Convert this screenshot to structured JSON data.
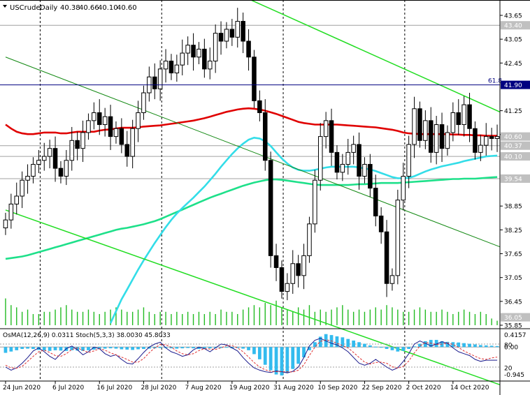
{
  "chart_data": [
    {
      "type": "candlestick",
      "symbol": "USCrude",
      "timeframe": "Daily",
      "ohlc_readout": [
        "40.38",
        "40.66",
        "40.10",
        "40.60"
      ],
      "ylim": [
        35.85,
        43.65
      ],
      "y_ticks": [
        {
          "value": 43.65,
          "label": "43.65"
        },
        {
          "value": 43.05,
          "label": "43.05"
        },
        {
          "value": 42.45,
          "label": "42.45"
        },
        {
          "value": 41.25,
          "label": "41.25"
        },
        {
          "value": 40.65,
          "label": "40.65"
        },
        {
          "value": 38.85,
          "label": "38.85"
        },
        {
          "value": 38.25,
          "label": "38.25"
        },
        {
          "value": 37.65,
          "label": "37.65"
        },
        {
          "value": 37.05,
          "label": "37.05"
        },
        {
          "value": 36.45,
          "label": "36.45"
        },
        {
          "value": 35.85,
          "label": "35.85"
        }
      ],
      "price_markers": [
        {
          "value": 43.4,
          "label": "43.40",
          "bg": "#c0c0c0",
          "fg": "#ffffff"
        },
        {
          "value": 41.9,
          "label": "41.90",
          "bg": "#000080",
          "fg": "#ffffff"
        },
        {
          "value": 40.6,
          "label": "40.60",
          "bg": "#c0c0c0",
          "fg": "#ffffff"
        },
        {
          "value": 40.37,
          "label": "40.37",
          "bg": "#c0c0c0",
          "fg": "#ffffff"
        },
        {
          "value": 40.1,
          "label": "40.10",
          "bg": "#c0c0c0",
          "fg": "#ffffff"
        },
        {
          "value": 39.54,
          "label": "39.54",
          "bg": "#c0c0c0",
          "fg": "#ffffff"
        },
        {
          "value": 36.05,
          "label": "36.05",
          "bg": "#c0c0c0",
          "fg": "#ffffff"
        }
      ],
      "fib_label": "61.8",
      "fib_level": 41.9,
      "upper_level": 43.4,
      "bar_count": 90,
      "x_labels": [
        {
          "bar": 0,
          "label": "24 Jun 2020"
        },
        {
          "bar": 9,
          "label": "6 Jul 2020"
        },
        {
          "bar": 17,
          "label": "16 Jul 2020"
        },
        {
          "bar": 25,
          "label": "28 Jul 2020"
        },
        {
          "bar": 33,
          "label": "7 Aug 2020"
        },
        {
          "bar": 41,
          "label": "19 Aug 2020"
        },
        {
          "bar": 49,
          "label": "31 Aug 2020"
        },
        {
          "bar": 57,
          "label": "10 Sep 2020"
        },
        {
          "bar": 65,
          "label": "22 Sep 2020"
        },
        {
          "bar": 73,
          "label": "2 Oct 2020"
        },
        {
          "bar": 81,
          "label": "14 Oct 2020"
        }
      ],
      "separators": [
        5,
        27,
        49,
        71
      ],
      "closes": [
        38.5,
        38.9,
        39.1,
        39.5,
        39.6,
        39.9,
        40.0,
        40.1,
        40.3,
        39.8,
        39.6,
        40.0,
        40.5,
        40.3,
        40.7,
        41.0,
        41.2,
        40.9,
        41.1,
        40.6,
        40.8,
        40.4,
        40.1,
        40.8,
        41.2,
        41.7,
        42.1,
        41.8,
        42.3,
        42.5,
        42.2,
        42.4,
        42.7,
        42.9,
        42.6,
        42.8,
        42.3,
        42.5,
        43.2,
        43.0,
        43.3,
        43.1,
        43.5,
        43.0,
        42.6,
        41.5,
        41.2,
        40.0,
        37.6,
        37.3,
        36.7,
        36.9,
        37.4,
        37.1,
        37.6,
        38.4,
        39.5,
        40.6,
        41.0,
        40.2,
        39.7,
        39.9,
        40.2,
        40.4,
        39.6,
        39.9,
        39.3,
        38.6,
        38.2,
        36.9,
        37.1,
        39.0,
        39.6,
        40.4,
        41.3,
        40.5,
        41.0,
        40.2,
        40.9,
        40.3,
        40.7,
        41.2,
        40.9,
        41.4,
        40.8,
        40.2,
        40.38,
        40.6,
        40.55,
        40.6
      ],
      "ma_slow": {
        "name": "MA200",
        "color": "#e00000",
        "values": [
          40.9,
          40.8,
          40.72,
          40.68,
          40.66,
          40.66,
          40.68,
          40.7,
          40.7,
          40.7,
          40.68,
          40.68,
          40.7,
          40.72,
          40.72,
          40.72,
          40.72,
          40.75,
          40.77,
          40.78,
          40.8,
          40.82,
          40.82,
          40.82,
          40.83,
          40.85,
          40.86,
          40.87,
          40.88,
          40.9,
          40.92,
          40.94,
          40.96,
          40.98,
          41.0,
          41.03,
          41.06,
          41.1,
          41.14,
          41.18,
          41.22,
          41.25,
          41.28,
          41.3,
          41.31,
          41.3,
          41.28,
          41.25,
          41.21,
          41.17,
          41.12,
          41.07,
          41.02,
          40.97,
          40.94,
          40.92,
          40.9,
          40.9,
          40.9,
          40.9,
          40.9,
          40.89,
          40.88,
          40.87,
          40.86,
          40.85,
          40.84,
          40.83,
          40.81,
          40.79,
          40.77,
          40.74,
          40.7,
          40.68,
          40.67,
          40.66,
          40.66,
          40.66,
          40.66,
          40.66,
          40.66,
          40.65,
          40.65,
          40.64,
          40.64,
          40.63,
          40.63,
          40.62,
          40.62,
          40.62
        ]
      },
      "ma_fast": {
        "name": "MA50",
        "color": "#33dde8",
        "values": [
          null,
          null,
          null,
          null,
          null,
          null,
          null,
          null,
          null,
          null,
          null,
          null,
          null,
          null,
          null,
          null,
          null,
          null,
          null,
          35.9,
          36.2,
          36.5,
          36.75,
          37.0,
          37.25,
          37.48,
          37.7,
          37.92,
          38.12,
          38.32,
          38.5,
          38.66,
          38.8,
          38.93,
          39.06,
          39.2,
          39.34,
          39.5,
          39.66,
          39.84,
          40.0,
          40.16,
          40.3,
          40.42,
          40.52,
          40.57,
          40.55,
          40.48,
          40.36,
          40.2,
          40.05,
          39.92,
          39.82,
          39.76,
          39.74,
          39.74,
          39.76,
          39.79,
          39.82,
          39.84,
          39.84,
          39.84,
          39.84,
          39.84,
          39.82,
          39.8,
          39.77,
          39.73,
          39.68,
          39.63,
          39.58,
          39.55,
          39.55,
          39.56,
          39.6,
          39.66,
          39.72,
          39.77,
          39.81,
          39.85,
          39.88,
          39.91,
          39.94,
          39.98,
          40.01,
          40.04,
          40.07,
          40.1,
          40.11,
          40.12
        ]
      },
      "ma_mid": {
        "name": "MA144",
        "color": "#1ee08a",
        "values": [
          37.52,
          37.54,
          37.56,
          37.58,
          37.61,
          37.65,
          37.69,
          37.73,
          37.77,
          37.81,
          37.85,
          37.89,
          37.93,
          37.97,
          38.01,
          38.05,
          38.09,
          38.13,
          38.17,
          38.21,
          38.25,
          38.28,
          38.3,
          38.33,
          38.36,
          38.39,
          38.43,
          38.47,
          38.52,
          38.58,
          38.64,
          38.7,
          38.76,
          38.82,
          38.88,
          38.94,
          39.0,
          39.06,
          39.11,
          39.16,
          39.21,
          39.26,
          39.31,
          39.36,
          39.4,
          39.44,
          39.47,
          39.5,
          39.52,
          39.52,
          39.51,
          39.49,
          39.47,
          39.45,
          39.43,
          39.41,
          39.39,
          39.38,
          39.38,
          39.38,
          39.38,
          39.38,
          39.38,
          39.39,
          39.4,
          39.4,
          39.41,
          39.42,
          39.43,
          39.43,
          39.43,
          39.43,
          39.44,
          39.45,
          39.46,
          39.47,
          39.48,
          39.49,
          39.5,
          39.51,
          39.52,
          39.53,
          39.53,
          39.54,
          39.54,
          39.54,
          39.55,
          39.56,
          39.57,
          39.58
        ]
      },
      "volumes": [
        12,
        9,
        8,
        6,
        7,
        5,
        5,
        6,
        6,
        7,
        8,
        9,
        7,
        6,
        6,
        7,
        6,
        5,
        6,
        7,
        8,
        7,
        6,
        6,
        7,
        8,
        6,
        5,
        6,
        6,
        5,
        6,
        5,
        6,
        5,
        6,
        5,
        6,
        5,
        7,
        6,
        6,
        5,
        7,
        8,
        9,
        8,
        10,
        9,
        11,
        8,
        7,
        6,
        8,
        7,
        9,
        6,
        7,
        6,
        7,
        8,
        9,
        7,
        6,
        7,
        6,
        7,
        8,
        7,
        9,
        8,
        7,
        6,
        6,
        7,
        8,
        7,
        6,
        6,
        7,
        6,
        5,
        6,
        7,
        6,
        5,
        6,
        5,
        3,
        2
      ],
      "trendlines": [
        {
          "name": "upper-channel",
          "color": "#22dd22",
          "width": 1.5,
          "from": {
            "bar": 41,
            "value": 44.25
          },
          "to": {
            "bar": 89,
            "value": 41.25
          }
        },
        {
          "name": "lower-channel",
          "color": "#22dd22",
          "width": 1.5,
          "from": {
            "bar": 0,
            "value": 38.75
          },
          "to": {
            "bar": 59,
            "value": 35.85
          }
        },
        {
          "name": "mid-trendline",
          "color": "#118811",
          "width": 1,
          "from": {
            "bar": 0,
            "value": 42.6
          },
          "to": {
            "bar": 89,
            "value": 37.85
          }
        }
      ]
    },
    {
      "type": "oscillator",
      "label": "OsMA(12,26,9) 0.0311  Stoch(5,3,3) 38.0030 45.8033",
      "ylim": [
        -0.945,
        0.4157
      ],
      "y_labels": [
        "0.4157",
        "80",
        "0.00",
        "20",
        "-0.945"
      ],
      "osma": [
        -0.18,
        -0.14,
        -0.1,
        -0.06,
        -0.05,
        -0.06,
        -0.09,
        -0.11,
        -0.12,
        -0.1,
        -0.11,
        -0.12,
        -0.1,
        -0.11,
        -0.12,
        -0.1,
        -0.08,
        -0.07,
        -0.05,
        -0.04,
        -0.05,
        -0.07,
        -0.08,
        -0.09,
        -0.07,
        -0.06,
        -0.05,
        -0.04,
        -0.03,
        -0.03,
        -0.04,
        -0.05,
        -0.04,
        -0.03,
        -0.04,
        -0.06,
        -0.05,
        -0.04,
        -0.03,
        -0.03,
        -0.02,
        -0.04,
        -0.03,
        -0.05,
        -0.1,
        -0.22,
        -0.38,
        -0.55,
        -0.72,
        -0.85,
        -0.88,
        -0.8,
        -0.68,
        -0.52,
        -0.32,
        -0.1,
        0.15,
        0.32,
        0.4,
        0.37,
        0.33,
        0.3,
        0.25,
        0.2,
        0.15,
        0.1,
        0.05,
        0.01,
        -0.02,
        -0.06,
        -0.1,
        -0.14,
        -0.12,
        -0.06,
        0.02,
        0.1,
        0.18,
        0.22,
        0.22,
        0.18,
        0.16,
        0.15,
        0.14,
        0.12,
        0.1,
        0.08,
        0.06,
        0.05,
        0.04,
        0.03
      ],
      "stoch_main": [
        20,
        12,
        18,
        30,
        45,
        62,
        70,
        60,
        48,
        40,
        55,
        68,
        75,
        65,
        52,
        60,
        72,
        68,
        55,
        48,
        52,
        40,
        30,
        28,
        42,
        58,
        72,
        80,
        85,
        70,
        60,
        55,
        48,
        52,
        65,
        72,
        68,
        60,
        70,
        80,
        78,
        70,
        62,
        45,
        30,
        18,
        12,
        8,
        6,
        10,
        8,
        5,
        9,
        20,
        45,
        75,
        90,
        95,
        88,
        82,
        78,
        70,
        60,
        45,
        30,
        25,
        30,
        40,
        30,
        20,
        12,
        18,
        35,
        55,
        80,
        88,
        82,
        75,
        80,
        86,
        82,
        70,
        60,
        55,
        50,
        40,
        35,
        38,
        38,
        38
      ],
      "stoch_signal": [
        25,
        18,
        17,
        22,
        35,
        48,
        60,
        64,
        58,
        50,
        48,
        55,
        66,
        70,
        64,
        58,
        62,
        68,
        64,
        57,
        52,
        46,
        40,
        33,
        33,
        42,
        57,
        70,
        79,
        78,
        72,
        62,
        55,
        52,
        55,
        63,
        68,
        67,
        66,
        70,
        76,
        76,
        70,
        60,
        46,
        32,
        20,
        13,
        9,
        8,
        8,
        8,
        7,
        12,
        26,
        50,
        72,
        87,
        91,
        88,
        82,
        76,
        70,
        58,
        45,
        33,
        28,
        32,
        33,
        30,
        21,
        17,
        22,
        36,
        57,
        75,
        84,
        82,
        79,
        80,
        83,
        79,
        71,
        62,
        55,
        48,
        42,
        40,
        44,
        46
      ]
    }
  ]
}
